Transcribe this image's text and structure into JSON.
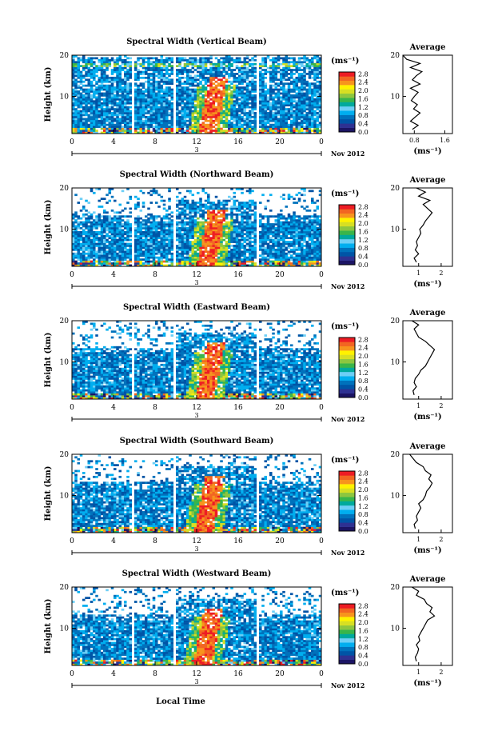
{
  "figure": {
    "time_axis_label": "Local Time",
    "date_label": "Nov 2012",
    "day_label": "3"
  },
  "colorbar": {
    "unit": "(ms⁻¹)",
    "ticks": [
      "0.0",
      "0.4",
      "0.8",
      "1.2",
      "1.6",
      "2.0",
      "2.4",
      "2.8"
    ],
    "colors": [
      "#1b1464",
      "#2e3192",
      "#0054a6",
      "#0072bc",
      "#00aeef",
      "#6dcff6",
      "#00a99d",
      "#39b54a",
      "#8dc63f",
      "#d7df23",
      "#fff200",
      "#f7941d",
      "#f26522",
      "#ed1c24"
    ]
  },
  "chart_data": [
    {
      "type": "heatmap",
      "title": "Spectral Width (Vertical Beam)",
      "ylabel": "Height (km)",
      "xlabel": "Local Time",
      "x_ticks": [
        "0",
        "4",
        "8",
        "12",
        "16",
        "20",
        "0"
      ],
      "xlim": [
        0,
        24
      ],
      "y_ticks": [
        "10",
        "20"
      ],
      "ylim": [
        1,
        20
      ],
      "zlim": [
        0,
        2.8
      ],
      "data_gaps_hours": [
        [
          5.7,
          6.0
        ],
        [
          9.7,
          10.0
        ],
        [
          17.8,
          18.1
        ]
      ],
      "enhanced_band": {
        "start_hour": 13.0,
        "end_hour": 15.0,
        "description": "strong spectral width peak near 14 LT"
      },
      "profile": {
        "title": "Average",
        "ylabel": "Height (km)",
        "xlabel": "(ms⁻¹)",
        "x_ticks": [
          "0.8",
          "1.6"
        ],
        "xlim": [
          0.5,
          1.8
        ],
        "y_ticks": [
          "10",
          "20"
        ],
        "heights": [
          2,
          3,
          4,
          5,
          6,
          7,
          8,
          9,
          10,
          11,
          12,
          13,
          14,
          15,
          16,
          17,
          18,
          19,
          20
        ],
        "values": [
          0.75,
          0.9,
          0.7,
          0.82,
          0.95,
          0.78,
          0.88,
          0.72,
          0.8,
          0.9,
          0.7,
          0.95,
          0.75,
          0.85,
          1.0,
          0.7,
          0.95,
          0.6,
          0.5
        ]
      }
    },
    {
      "type": "heatmap",
      "title": "Spectral Width (Northward Beam)",
      "ylabel": "Height (km)",
      "xlabel": "Local Time",
      "x_ticks": [
        "0",
        "4",
        "8",
        "12",
        "16",
        "20",
        "0"
      ],
      "xlim": [
        0,
        24
      ],
      "y_ticks": [
        "10",
        "20"
      ],
      "ylim": [
        1,
        20
      ],
      "zlim": [
        0,
        2.8
      ],
      "data_gaps_hours": [
        [
          5.7,
          6.0
        ],
        [
          9.7,
          10.0
        ],
        [
          17.8,
          18.1
        ]
      ],
      "enhanced_band": {
        "start_hour": 13.0,
        "end_hour": 15.0,
        "description": "strong spectral width peak near 14 LT"
      },
      "profile": {
        "title": "Average",
        "ylabel": "Height (km)",
        "xlabel": "(ms⁻¹)",
        "x_ticks": [
          "1",
          "2"
        ],
        "xlim": [
          0.3,
          2.5
        ],
        "y_ticks": [
          "10",
          "20"
        ],
        "heights": [
          2,
          3,
          4,
          5,
          6,
          7,
          8,
          9,
          10,
          11,
          12,
          13,
          14,
          15,
          16,
          17,
          18,
          19,
          20
        ],
        "values": [
          0.9,
          0.8,
          1.0,
          0.85,
          0.95,
          0.9,
          1.0,
          1.1,
          1.05,
          1.2,
          1.3,
          1.45,
          1.6,
          1.4,
          1.2,
          1.5,
          1.0,
          1.3,
          0.9
        ]
      }
    },
    {
      "type": "heatmap",
      "title": "Spectral Width (Eastward Beam)",
      "ylabel": "Height (km)",
      "xlabel": "Local Time",
      "x_ticks": [
        "0",
        "4",
        "8",
        "12",
        "16",
        "20",
        "0"
      ],
      "xlim": [
        0,
        24
      ],
      "y_ticks": [
        "10",
        "20"
      ],
      "ylim": [
        1,
        20
      ],
      "zlim": [
        0,
        2.8
      ],
      "data_gaps_hours": [
        [
          5.7,
          6.0
        ],
        [
          9.7,
          10.0
        ],
        [
          17.8,
          18.1
        ]
      ],
      "enhanced_band": {
        "start_hour": 13.0,
        "end_hour": 15.0,
        "description": "strong spectral width peak near 14 LT"
      },
      "profile": {
        "title": "Average",
        "ylabel": "Height (km)",
        "xlabel": "(ms⁻¹)",
        "x_ticks": [
          "1",
          "2"
        ],
        "xlim": [
          0.3,
          2.5
        ],
        "y_ticks": [
          "10",
          "20"
        ],
        "heights": [
          2,
          3,
          4,
          5,
          6,
          7,
          8,
          9,
          10,
          11,
          12,
          13,
          14,
          15,
          16,
          17,
          18,
          19,
          20
        ],
        "values": [
          0.8,
          0.75,
          0.9,
          0.8,
          0.85,
          1.0,
          1.1,
          1.3,
          1.4,
          1.5,
          1.6,
          1.7,
          1.5,
          1.3,
          1.0,
          0.9,
          0.8,
          1.0,
          0.7
        ]
      }
    },
    {
      "type": "heatmap",
      "title": "Spectral Width (Southward Beam)",
      "ylabel": "Height (km)",
      "xlabel": "Local Time",
      "x_ticks": [
        "0",
        "4",
        "8",
        "12",
        "16",
        "20",
        "0"
      ],
      "xlim": [
        0,
        24
      ],
      "y_ticks": [
        "10",
        "20"
      ],
      "ylim": [
        1,
        20
      ],
      "zlim": [
        0,
        2.8
      ],
      "data_gaps_hours": [
        [
          5.7,
          6.0
        ],
        [
          9.7,
          10.0
        ],
        [
          17.8,
          18.1
        ]
      ],
      "enhanced_band": {
        "start_hour": 13.0,
        "end_hour": 15.0,
        "description": "strong spectral width peak near 14 LT"
      },
      "profile": {
        "title": "Average",
        "ylabel": "Height (km)",
        "xlabel": "(ms⁻¹)",
        "x_ticks": [
          "1",
          "2"
        ],
        "xlim": [
          0.3,
          2.5
        ],
        "y_ticks": [
          "10",
          "20"
        ],
        "heights": [
          2,
          3,
          4,
          5,
          6,
          7,
          8,
          9,
          10,
          11,
          12,
          13,
          14,
          15,
          16,
          17,
          18,
          19,
          20
        ],
        "values": [
          0.85,
          0.8,
          0.95,
          0.9,
          1.0,
          1.1,
          1.0,
          1.2,
          1.3,
          1.35,
          1.5,
          1.6,
          1.45,
          1.55,
          1.3,
          1.2,
          0.9,
          0.75,
          0.6
        ]
      }
    },
    {
      "type": "heatmap",
      "title": "Spectral Width (Westward Beam)",
      "ylabel": "Height (km)",
      "xlabel": "Local Time",
      "x_ticks": [
        "0",
        "4",
        "8",
        "12",
        "16",
        "20",
        "0"
      ],
      "xlim": [
        0,
        24
      ],
      "y_ticks": [
        "10",
        "20"
      ],
      "ylim": [
        1,
        20
      ],
      "zlim": [
        0,
        2.8
      ],
      "data_gaps_hours": [
        [
          5.7,
          6.0
        ],
        [
          9.7,
          10.0
        ],
        [
          17.8,
          18.1
        ]
      ],
      "enhanced_band": {
        "start_hour": 13.0,
        "end_hour": 15.0,
        "description": "strong spectral width peak near 14 LT"
      },
      "profile": {
        "title": "Average",
        "ylabel": "Height (km)",
        "xlabel": "(ms⁻¹)",
        "x_ticks": [
          "1",
          "2"
        ],
        "xlim": [
          0.3,
          2.5
        ],
        "y_ticks": [
          "10",
          "20"
        ],
        "heights": [
          2,
          3,
          4,
          5,
          6,
          7,
          8,
          9,
          10,
          11,
          12,
          13,
          14,
          15,
          16,
          17,
          18,
          19,
          20
        ],
        "values": [
          0.9,
          0.85,
          0.95,
          1.0,
          0.9,
          1.05,
          1.0,
          1.1,
          1.2,
          1.3,
          1.4,
          1.7,
          1.5,
          1.6,
          1.35,
          1.25,
          0.9,
          1.0,
          0.7
        ]
      }
    }
  ]
}
